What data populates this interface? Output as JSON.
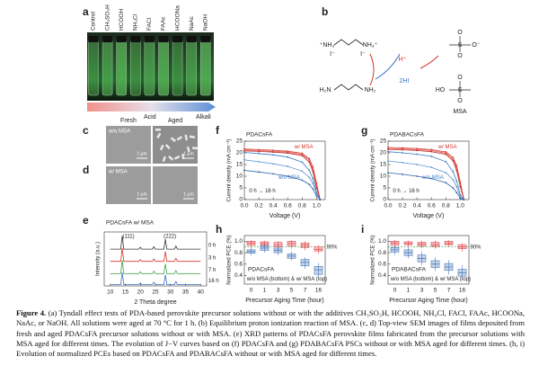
{
  "figure": {
    "panel_labels": [
      "a",
      "b",
      "c",
      "d",
      "e",
      "f",
      "g",
      "h",
      "i"
    ],
    "vials": [
      "Control",
      "CH₃SO₃H",
      "HCOOH",
      "NH₄Cl",
      "FACl",
      "FAAc",
      "HCOONa",
      "NaAc",
      "NaOH"
    ],
    "gradient": [
      "Acid",
      "Alkali"
    ],
    "scheme": {
      "left_top": [
        "⁺NH₃",
        "NH₃⁺"
      ],
      "iodides": [
        "I⁻",
        "I⁻"
      ],
      "proton": "H⁺",
      "acid": "2HI",
      "left_bottom": [
        "H₂N",
        "NH₂"
      ],
      "sulfonate": [
        "O",
        "S",
        "O⁻",
        "O"
      ],
      "msa": [
        "HO",
        "S",
        "O",
        "O"
      ],
      "name": "MSA"
    },
    "sem": {
      "headers": [
        "Fresh",
        "Aged"
      ],
      "rows": [
        "w/o MSA",
        "w/ MSA"
      ],
      "scale": "1 μm"
    },
    "caption_label": "Figure 4.",
    "caption": "(a) Tyndall effect tests of PDA-based perovskite precursor solutions without or with the additives CH₃SO₃H, HCOOH, NH₄Cl, FACl, FAAc, HCOONa, NaAc, or NaOH. All solutions were aged at 70 °C for 1 h. (b) Equilibrium proton ionization reaction of MSA. (c, d) Top-view SEM images of films deposited from fresh and aged PDACsFA precursor solutions without or with MSA. (e) XRD patterns of PDACsFA perovskite films fabricated from the precursor solutions with MSA aged for different times. The evolution of J−V curves based on (f) PDACsFA and (g) PDABACsFA PSCs without or with MSA aged for different times. (h, i) Evolution of normalized PCEs based on PDACsFA and PDABACsFA without or with MSA aged for different times."
  },
  "chart_data": [
    {
      "type": "line",
      "title": "PDACsFA w/ MSA",
      "x_label": "2 Theta degree",
      "y_label": "Intensity (a.u.)",
      "x": [
        10,
        13.5,
        14,
        14.5,
        19.5,
        20,
        20.5,
        24,
        24.5,
        25,
        27.8,
        28.3,
        28.8,
        31.3,
        31.8,
        32.3,
        40
      ],
      "xlim": [
        8,
        42
      ],
      "ylim": [
        0,
        4.4
      ],
      "xticks": [
        10,
        15,
        20,
        25,
        30,
        35,
        40
      ],
      "annotations": [
        "(111)",
        "(222)"
      ],
      "series": [
        {
          "name": "0 h",
          "color": "#333333",
          "values": [
            3,
            3,
            4.1,
            3,
            3,
            3.15,
            3,
            3,
            3.2,
            3,
            3,
            3.8,
            3,
            3,
            3.25,
            3,
            3
          ]
        },
        {
          "name": "3 h",
          "color": "#d9342b",
          "values": [
            2,
            2,
            3.1,
            2,
            2,
            2.15,
            2,
            2,
            2.2,
            2,
            2,
            2.8,
            2,
            2,
            2.25,
            2,
            2
          ]
        },
        {
          "name": "7 h",
          "color": "#3aa041",
          "values": [
            1,
            1,
            2.1,
            1,
            1,
            1.15,
            1,
            1,
            1.2,
            1,
            1,
            1.8,
            1,
            1,
            1.25,
            1,
            1
          ]
        },
        {
          "name": "16 h",
          "color": "#3a6fc2",
          "values": [
            0.1,
            0.1,
            1.1,
            0.1,
            0.1,
            0.25,
            0.1,
            0.1,
            0.3,
            0.1,
            0.1,
            0.9,
            0.1,
            0.1,
            0.35,
            0.1,
            0.1
          ]
        }
      ]
    },
    {
      "type": "line",
      "title": "PDACsFA",
      "x_label": "Voltage (V)",
      "y_label": "Current density (mA cm⁻²)",
      "x": [
        0,
        0.2,
        0.4,
        0.6,
        0.8,
        0.9,
        0.95,
        1,
        1.05
      ],
      "xlim": [
        0,
        1.12
      ],
      "ylim": [
        0,
        25
      ],
      "xticks": [
        {
          "value": 0,
          "label": "0.0"
        },
        0.2,
        0.4,
        0.6,
        0.8,
        {
          "value": 1,
          "label": "1.0"
        }
      ],
      "yticks": [
        0,
        5,
        10,
        15,
        20,
        25
      ],
      "annotations": [
        "w/ MSA",
        "w/o MSA",
        "0 h → 16 h"
      ],
      "series": [
        {
          "color": "#d9342b",
          "values": [
            21.6,
            21.4,
            21.1,
            20.7,
            19.8,
            17.5,
            14,
            7,
            0
          ]
        },
        {
          "color": "#e06a5e",
          "values": [
            21.2,
            21,
            20.7,
            20.3,
            19.3,
            16.8,
            13,
            6,
            0
          ]
        },
        {
          "color": "#c0282a",
          "values": [
            20.8,
            20.6,
            20.3,
            19.9,
            18.8,
            16,
            12,
            5,
            0
          ]
        },
        {
          "color": "#3a7cc2",
          "values": [
            20.2,
            19.7,
            19.1,
            18.2,
            16,
            12.5,
            9,
            3,
            0
          ]
        },
        {
          "color": "#5b95d0",
          "values": [
            17,
            16.2,
            15.3,
            14.2,
            12.2,
            9.5,
            7,
            2.5,
            0
          ]
        },
        {
          "color": "#2d62a8",
          "values": [
            12.5,
            11.8,
            11,
            10,
            8.3,
            6.5,
            4.5,
            1.5,
            0
          ]
        }
      ]
    },
    {
      "type": "line",
      "title": "PDABACsFA",
      "x_label": "Voltage (V)",
      "y_label": "Current density (mA cm⁻²)",
      "x": [
        0,
        0.2,
        0.4,
        0.6,
        0.8,
        0.9,
        0.95,
        1,
        1.05
      ],
      "xlim": [
        0,
        1.12
      ],
      "ylim": [
        0,
        25
      ],
      "xticks": [
        {
          "value": 0,
          "label": "0.0"
        },
        0.2,
        0.4,
        0.6,
        0.8,
        {
          "value": 1,
          "label": "1.0"
        }
      ],
      "yticks": [
        0,
        5,
        10,
        15,
        20,
        25
      ],
      "annotations": [
        "w/ MSA",
        "w/o MSA",
        "0 h → 16 h"
      ],
      "series": [
        {
          "color": "#d9342b",
          "values": [
            22.3,
            22.1,
            21.8,
            21.4,
            20.4,
            18,
            14.5,
            7.5,
            0
          ]
        },
        {
          "color": "#e06a5e",
          "values": [
            21.9,
            21.7,
            21.4,
            21,
            19.9,
            17.3,
            13.5,
            6.5,
            0
          ]
        },
        {
          "color": "#c0282a",
          "values": [
            21.5,
            21.3,
            21,
            20.5,
            19.4,
            16.6,
            12.5,
            5.5,
            0
          ]
        },
        {
          "color": "#3a7cc2",
          "values": [
            20.5,
            20,
            19.4,
            18.5,
            16.2,
            12,
            8,
            2,
            0
          ]
        },
        {
          "color": "#5b95d0",
          "values": [
            16.5,
            15.8,
            15,
            13.8,
            11.5,
            8.5,
            5.5,
            1,
            0
          ]
        },
        {
          "color": "#2d62a8",
          "values": [
            11.5,
            10.8,
            10,
            9,
            7.2,
            5,
            3,
            0.5,
            0
          ]
        }
      ]
    },
    {
      "type": "box",
      "title": "PDACsFA",
      "x_label": "Precursor Aging Time (hour)",
      "y_label": "Normalized PCE (%)",
      "categories": [
        "0",
        "1",
        "3",
        "5",
        "7",
        "16"
      ],
      "ylim": [
        0.25,
        1.1
      ],
      "yticks": [
        0.4,
        0.6,
        0.8,
        {
          "value": 1,
          "label": "1.0"
        }
      ],
      "reference": {
        "value": 0.9,
        "label": "90%"
      },
      "annotations": [
        "w/o MSA (bottom) & w/ MSA (top)"
      ],
      "series": [
        {
          "color": "#e0474c",
          "low": [
            0.88,
            0.88,
            0.85,
            0.87,
            0.84,
            0.78
          ],
          "q1": [
            0.93,
            0.93,
            0.9,
            0.92,
            0.89,
            0.83
          ],
          "median": [
            0.97,
            0.96,
            0.94,
            0.96,
            0.93,
            0.86
          ],
          "q3": [
            1,
            0.99,
            0.98,
            1,
            0.97,
            0.9
          ],
          "high": [
            1.02,
            1.01,
            1,
            1.02,
            1,
            0.93
          ]
        },
        {
          "color": "#4a78b8",
          "low": [
            0.75,
            0.8,
            0.76,
            0.66,
            0.52,
            0.36
          ],
          "q1": [
            0.79,
            0.84,
            0.8,
            0.7,
            0.57,
            0.42
          ],
          "median": [
            0.82,
            0.88,
            0.84,
            0.74,
            0.63,
            0.5
          ],
          "q3": [
            0.85,
            0.92,
            0.88,
            0.78,
            0.68,
            0.56
          ],
          "high": [
            0.88,
            0.95,
            0.92,
            0.82,
            0.72,
            0.62
          ]
        }
      ]
    },
    {
      "type": "box",
      "title": "PDABACsFA",
      "x_label": "Precursor Aging Time (hour)",
      "y_label": "Normalized PCE (%)",
      "categories": [
        "0",
        "1",
        "3",
        "5",
        "7",
        "16"
      ],
      "ylim": [
        0.25,
        1.1
      ],
      "yticks": [
        0.4,
        0.6,
        0.8,
        {
          "value": 1,
          "label": "1.0"
        }
      ],
      "reference": {
        "value": 0.9,
        "label": "90%"
      },
      "annotations": [
        "w/o MSA (bottom) & w/ MSA (top)"
      ],
      "series": [
        {
          "color": "#e0474c",
          "low": [
            0.88,
            0.9,
            0.88,
            0.87,
            0.9,
            0.82
          ],
          "q1": [
            0.93,
            0.94,
            0.92,
            0.91,
            0.94,
            0.87
          ],
          "median": [
            0.97,
            0.96,
            0.95,
            0.94,
            0.96,
            0.9
          ],
          "q3": [
            1,
            0.99,
            0.98,
            0.98,
            1,
            0.94
          ],
          "high": [
            1.03,
            1.01,
            1.01,
            1.01,
            1.02,
            0.97
          ]
        },
        {
          "color": "#4a78b8",
          "low": [
            0.76,
            0.7,
            0.58,
            0.48,
            0.42,
            0.32
          ],
          "q1": [
            0.81,
            0.75,
            0.64,
            0.54,
            0.49,
            0.39
          ],
          "median": [
            0.85,
            0.8,
            0.7,
            0.6,
            0.55,
            0.45
          ],
          "q3": [
            0.89,
            0.85,
            0.76,
            0.66,
            0.61,
            0.51
          ],
          "high": [
            0.93,
            0.9,
            0.82,
            0.72,
            0.67,
            0.58
          ]
        }
      ]
    }
  ]
}
